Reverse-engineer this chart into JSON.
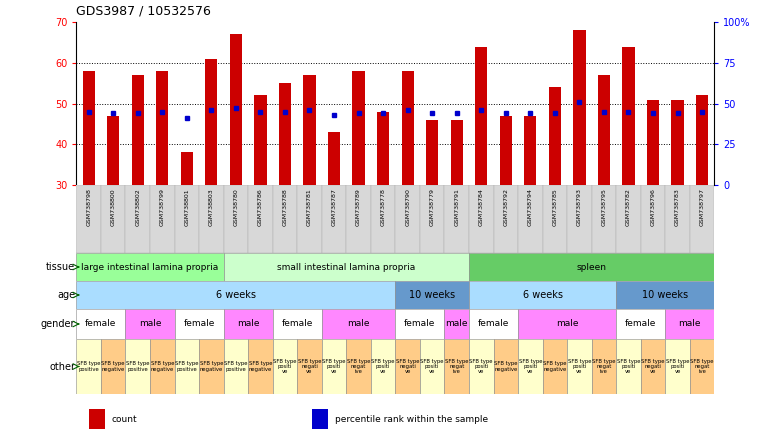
{
  "title": "GDS3987 / 10532576",
  "samples": [
    "GSM738798",
    "GSM738800",
    "GSM738802",
    "GSM738799",
    "GSM738801",
    "GSM738803",
    "GSM738780",
    "GSM738786",
    "GSM738788",
    "GSM738781",
    "GSM738787",
    "GSM738789",
    "GSM738778",
    "GSM738790",
    "GSM738779",
    "GSM738791",
    "GSM738784",
    "GSM738792",
    "GSM738794",
    "GSM738785",
    "GSM738793",
    "GSM738795",
    "GSM738782",
    "GSM738796",
    "GSM738783",
    "GSM738797"
  ],
  "counts": [
    58,
    47,
    57,
    58,
    38,
    61,
    67,
    52,
    55,
    57,
    43,
    58,
    48,
    58,
    46,
    46,
    64,
    47,
    47,
    54,
    68,
    57,
    64,
    51,
    51,
    52
  ],
  "percentiles": [
    45,
    44,
    44,
    45,
    41,
    46,
    47,
    45,
    45,
    46,
    43,
    44,
    44,
    46,
    44,
    44,
    46,
    44,
    44,
    44,
    51,
    45,
    45,
    44,
    44,
    45
  ],
  "ylim": [
    30,
    70
  ],
  "yticks": [
    30,
    40,
    50,
    60,
    70
  ],
  "right_yticks": [
    0,
    25,
    50,
    75,
    100
  ],
  "right_yticklabels": [
    "0",
    "25",
    "50",
    "75",
    "100%"
  ],
  "bar_color": "#cc0000",
  "percentile_color": "#0000cc",
  "tissue_groups": [
    {
      "label": "large intestinal lamina propria",
      "start": 0,
      "end": 6,
      "color": "#99ff99"
    },
    {
      "label": "small intestinal lamina propria",
      "start": 6,
      "end": 16,
      "color": "#ccffcc"
    },
    {
      "label": "spleen",
      "start": 16,
      "end": 26,
      "color": "#66cc66"
    }
  ],
  "age_groups": [
    {
      "label": "6 weeks",
      "start": 0,
      "end": 13,
      "color": "#aaddff"
    },
    {
      "label": "10 weeks",
      "start": 13,
      "end": 16,
      "color": "#6699cc"
    },
    {
      "label": "6 weeks",
      "start": 16,
      "end": 22,
      "color": "#aaddff"
    },
    {
      "label": "10 weeks",
      "start": 22,
      "end": 26,
      "color": "#6699cc"
    }
  ],
  "gender_groups": [
    {
      "label": "female",
      "start": 0,
      "end": 2,
      "color": "#ffffff"
    },
    {
      "label": "male",
      "start": 2,
      "end": 4,
      "color": "#ff88ff"
    },
    {
      "label": "female",
      "start": 4,
      "end": 6,
      "color": "#ffffff"
    },
    {
      "label": "male",
      "start": 6,
      "end": 8,
      "color": "#ff88ff"
    },
    {
      "label": "female",
      "start": 8,
      "end": 10,
      "color": "#ffffff"
    },
    {
      "label": "male",
      "start": 10,
      "end": 13,
      "color": "#ff88ff"
    },
    {
      "label": "female",
      "start": 13,
      "end": 15,
      "color": "#ffffff"
    },
    {
      "label": "male",
      "start": 15,
      "end": 16,
      "color": "#ff88ff"
    },
    {
      "label": "female",
      "start": 16,
      "end": 18,
      "color": "#ffffff"
    },
    {
      "label": "male",
      "start": 18,
      "end": 22,
      "color": "#ff88ff"
    },
    {
      "label": "female",
      "start": 22,
      "end": 24,
      "color": "#ffffff"
    },
    {
      "label": "male",
      "start": 24,
      "end": 26,
      "color": "#ff88ff"
    }
  ],
  "other_groups": [
    {
      "label": "SFB type\npositive",
      "start": 0,
      "end": 1,
      "color": "#ffffcc"
    },
    {
      "label": "SFB type\nnegative",
      "start": 1,
      "end": 2,
      "color": "#ffcc88"
    },
    {
      "label": "SFB type\npositive",
      "start": 2,
      "end": 3,
      "color": "#ffffcc"
    },
    {
      "label": "SFB type\nnegative",
      "start": 3,
      "end": 4,
      "color": "#ffcc88"
    },
    {
      "label": "SFB type\npositive",
      "start": 4,
      "end": 5,
      "color": "#ffffcc"
    },
    {
      "label": "SFB type\nnegative",
      "start": 5,
      "end": 6,
      "color": "#ffcc88"
    },
    {
      "label": "SFB type\npositive",
      "start": 6,
      "end": 7,
      "color": "#ffffcc"
    },
    {
      "label": "SFB type\nnegative",
      "start": 7,
      "end": 8,
      "color": "#ffcc88"
    },
    {
      "label": "SFB type\npositi\nve",
      "start": 8,
      "end": 9,
      "color": "#ffffcc"
    },
    {
      "label": "SFB type\nnegati\nve",
      "start": 9,
      "end": 10,
      "color": "#ffcc88"
    },
    {
      "label": "SFB type\npositi\nve",
      "start": 10,
      "end": 11,
      "color": "#ffffcc"
    },
    {
      "label": "SFB type\nnegat\nive",
      "start": 11,
      "end": 12,
      "color": "#ffcc88"
    },
    {
      "label": "SFB type\npositi\nve",
      "start": 12,
      "end": 13,
      "color": "#ffffcc"
    },
    {
      "label": "SFB type\nnegati\nve",
      "start": 13,
      "end": 14,
      "color": "#ffcc88"
    },
    {
      "label": "SFB type\npositi\nve",
      "start": 14,
      "end": 15,
      "color": "#ffffcc"
    },
    {
      "label": "SFB type\nnegat\nive",
      "start": 15,
      "end": 16,
      "color": "#ffcc88"
    },
    {
      "label": "SFB type\npositi\nve",
      "start": 16,
      "end": 17,
      "color": "#ffffcc"
    },
    {
      "label": "SFB type\nnegative",
      "start": 17,
      "end": 18,
      "color": "#ffcc88"
    },
    {
      "label": "SFB type\npositi\nve",
      "start": 18,
      "end": 19,
      "color": "#ffffcc"
    },
    {
      "label": "SFB type\nnegative",
      "start": 19,
      "end": 20,
      "color": "#ffcc88"
    },
    {
      "label": "SFB type\npositi\nve",
      "start": 20,
      "end": 21,
      "color": "#ffffcc"
    },
    {
      "label": "SFB type\nnegat\nive",
      "start": 21,
      "end": 22,
      "color": "#ffcc88"
    },
    {
      "label": "SFB type\npositi\nve",
      "start": 22,
      "end": 23,
      "color": "#ffffcc"
    },
    {
      "label": "SFB type\nnegati\nve",
      "start": 23,
      "end": 24,
      "color": "#ffcc88"
    },
    {
      "label": "SFB type\npositi\nve",
      "start": 24,
      "end": 25,
      "color": "#ffffcc"
    },
    {
      "label": "SFB type\nnegat\nive",
      "start": 25,
      "end": 26,
      "color": "#ffcc88"
    }
  ],
  "legend_items": [
    {
      "label": "count",
      "color": "#cc0000"
    },
    {
      "label": "percentile rank within the sample",
      "color": "#0000cc"
    }
  ]
}
